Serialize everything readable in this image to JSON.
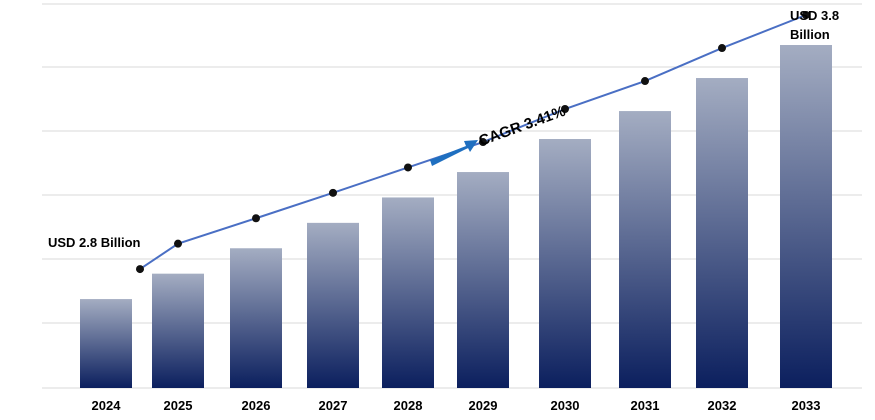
{
  "chart_data": {
    "type": "bar",
    "title": "",
    "xlabel": "",
    "ylabel": "",
    "categories": [
      "2024",
      "2025",
      "2026",
      "2027",
      "2028",
      "2029",
      "2030",
      "2031",
      "2032",
      "2033"
    ],
    "series": [
      {
        "values": [
          2.8,
          2.9,
          3.0,
          3.1,
          3.2,
          3.3,
          3.43,
          3.54,
          3.67,
          3.8
        ]
      }
    ],
    "trend_line": {
      "values": [
        2.8,
        2.9,
        3.0,
        3.1,
        3.2,
        3.3,
        3.43,
        3.54,
        3.67,
        3.8
      ]
    },
    "ylim": [
      2.45,
      3.8
    ],
    "grid": true,
    "annotations": {
      "start_label": "USD 2.8 Billion",
      "end_label_line1": "USD 3.8",
      "end_label_line2": "Billion",
      "cagr_label": "CAGR 3.41%"
    },
    "colors": {
      "bar_top": "#a4adc2",
      "bar_bottom": "#0b1f5e",
      "line": "#4a6fc4",
      "marker": "#111111",
      "arrow": "#1f6fc0",
      "grid": "#d9d9d9"
    }
  }
}
